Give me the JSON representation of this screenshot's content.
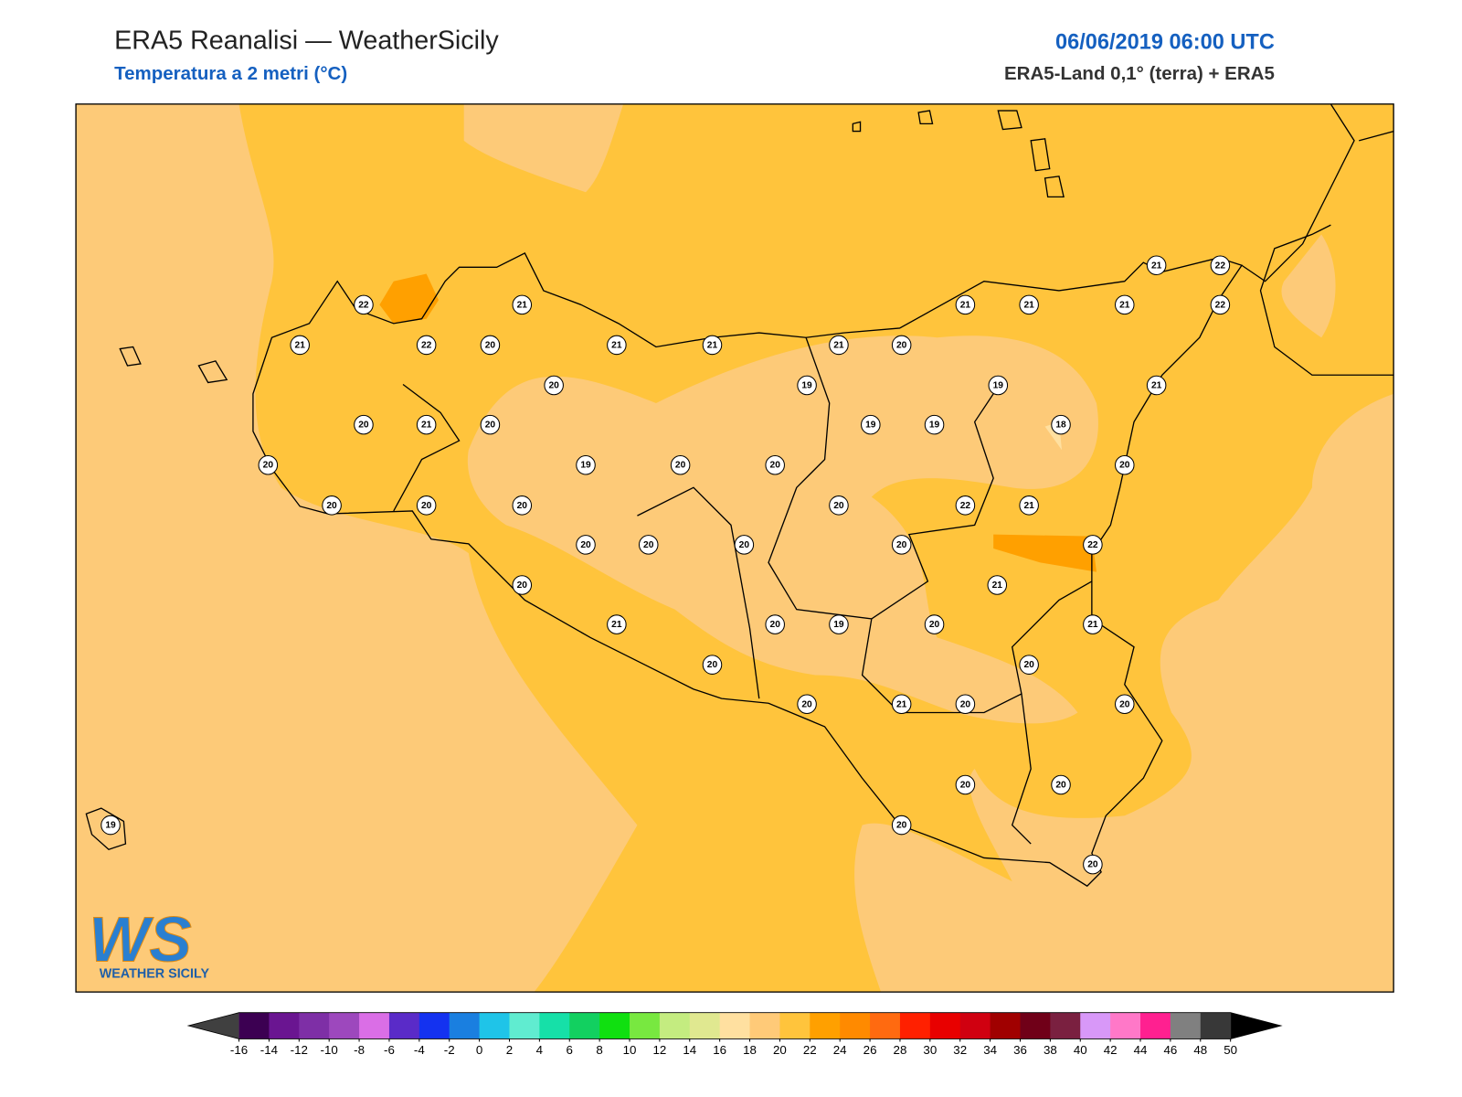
{
  "header": {
    "title": "ERA5 Reanalisi — WeatherSicily",
    "subtitle": "Temperatura a 2 metri (°C)",
    "date": "06/06/2019 06:00 UTC",
    "source": "ERA5-Land 0,1° (terra) + ERA5"
  },
  "stations": [
    22,
    21,
    21,
    22,
    20,
    21,
    21,
    21,
    20,
    21,
    21,
    21,
    22,
    21,
    22,
    20,
    19,
    19,
    21,
    20,
    21,
    20,
    19,
    19,
    18,
    20,
    19,
    20,
    20,
    20,
    20,
    20,
    20,
    20,
    22,
    21,
    20,
    20,
    20,
    20,
    22,
    20,
    21,
    21,
    20,
    19,
    20,
    21,
    20,
    20,
    20,
    21,
    20,
    20,
    20,
    20,
    19,
    20,
    20
  ],
  "colorbar": {
    "ticks": [
      -16,
      -14,
      -12,
      -10,
      -8,
      -6,
      -4,
      -2,
      0,
      2,
      4,
      6,
      8,
      10,
      12,
      14,
      16,
      18,
      20,
      22,
      24,
      26,
      28,
      30,
      32,
      34,
      36,
      38,
      40,
      42,
      44,
      46,
      48,
      50
    ],
    "colors": [
      "#3c0052",
      "#6a1591",
      "#7e2fa6",
      "#9d48bd",
      "#da6ee6",
      "#5a2bc8",
      "#1432f0",
      "#1a7fe0",
      "#1fc4e8",
      "#60ecd0",
      "#16e0a8",
      "#12d060",
      "#10e010",
      "#78e840",
      "#c4ec80",
      "#e0e890",
      "#ffe0a0",
      "#ffca78",
      "#ffc43c",
      "#ffa000",
      "#ff8a00",
      "#ff6a10",
      "#ff2000",
      "#e80000",
      "#d00010",
      "#a00000",
      "#700018",
      "#7a2040",
      "#d898f8",
      "#ff78c8",
      "#ff2090",
      "#808080",
      "#383838"
    ],
    "under_color": "#404040",
    "over_color": "#000000"
  },
  "logo": {
    "initials": "WS",
    "name": "WEATHER SICILY"
  }
}
